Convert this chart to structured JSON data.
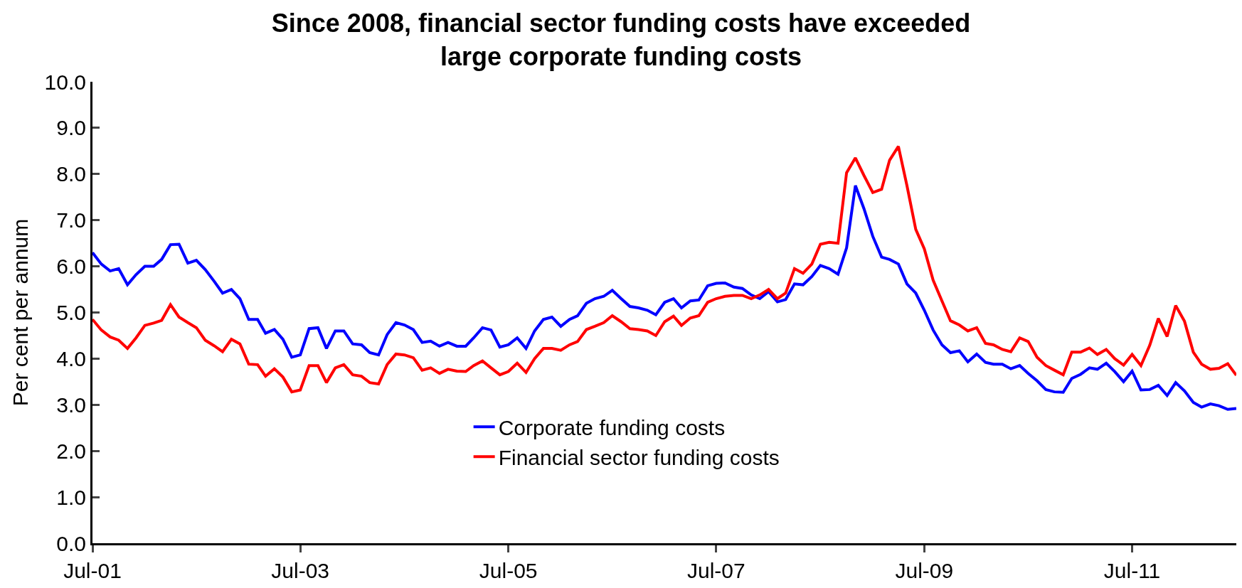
{
  "chart_data": {
    "type": "line",
    "title": "Since 2008, financial sector funding costs have exceeded\nlarge corporate funding costs",
    "ylabel": "Per cent per annum",
    "x": [
      "2001-07",
      "2001-08",
      "2001-09",
      "2001-10",
      "2001-11",
      "2001-12",
      "2002-01",
      "2002-02",
      "2002-03",
      "2002-04",
      "2002-05",
      "2002-06",
      "2002-07",
      "2002-08",
      "2002-09",
      "2002-10",
      "2002-11",
      "2002-12",
      "2003-01",
      "2003-02",
      "2003-03",
      "2003-04",
      "2003-05",
      "2003-06",
      "2003-07",
      "2003-08",
      "2003-09",
      "2003-10",
      "2003-11",
      "2003-12",
      "2004-01",
      "2004-02",
      "2004-03",
      "2004-04",
      "2004-05",
      "2004-06",
      "2004-07",
      "2004-08",
      "2004-09",
      "2004-10",
      "2004-11",
      "2004-12",
      "2005-01",
      "2005-02",
      "2005-03",
      "2005-04",
      "2005-05",
      "2005-06",
      "2005-07",
      "2005-08",
      "2005-09",
      "2005-10",
      "2005-11",
      "2005-12",
      "2006-01",
      "2006-02",
      "2006-03",
      "2006-04",
      "2006-05",
      "2006-06",
      "2006-07",
      "2006-08",
      "2006-09",
      "2006-10",
      "2006-11",
      "2006-12",
      "2007-01",
      "2007-02",
      "2007-03",
      "2007-04",
      "2007-05",
      "2007-06",
      "2007-07",
      "2007-08",
      "2007-09",
      "2007-10",
      "2007-11",
      "2007-12",
      "2008-01",
      "2008-02",
      "2008-03",
      "2008-04",
      "2008-05",
      "2008-06",
      "2008-07",
      "2008-08",
      "2008-09",
      "2008-10",
      "2008-11",
      "2008-12",
      "2009-01",
      "2009-02",
      "2009-03",
      "2009-04",
      "2009-05",
      "2009-06",
      "2009-07",
      "2009-08",
      "2009-09",
      "2009-10",
      "2009-11",
      "2009-12",
      "2010-01",
      "2010-02",
      "2010-03",
      "2010-04",
      "2010-05",
      "2010-06",
      "2010-07",
      "2010-08",
      "2010-09",
      "2010-10",
      "2010-11",
      "2010-12",
      "2011-01",
      "2011-02",
      "2011-03",
      "2011-04",
      "2011-05",
      "2011-06",
      "2011-07",
      "2011-08",
      "2011-09",
      "2011-10",
      "2011-11",
      "2011-12",
      "2012-01",
      "2012-02",
      "2012-03",
      "2012-04",
      "2012-05",
      "2012-06",
      "2012-07"
    ],
    "series": [
      {
        "name": "Corporate funding costs",
        "color": "#0000ff",
        "values": [
          6.3,
          6.05,
          5.9,
          5.95,
          5.6,
          5.82,
          6.0,
          6.0,
          6.15,
          6.47,
          6.48,
          6.07,
          6.13,
          5.93,
          5.68,
          5.42,
          5.5,
          5.3,
          4.85,
          4.85,
          4.55,
          4.63,
          4.42,
          4.03,
          4.08,
          4.65,
          4.67,
          4.22,
          4.6,
          4.6,
          4.32,
          4.3,
          4.13,
          4.08,
          4.52,
          4.78,
          4.73,
          4.63,
          4.35,
          4.38,
          4.27,
          4.35,
          4.27,
          4.27,
          4.45,
          4.67,
          4.62,
          4.25,
          4.3,
          4.45,
          4.22,
          4.6,
          4.85,
          4.9,
          4.7,
          4.85,
          4.93,
          5.2,
          5.3,
          5.35,
          5.48,
          5.3,
          5.13,
          5.1,
          5.05,
          4.95,
          5.22,
          5.3,
          5.1,
          5.25,
          5.27,
          5.58,
          5.63,
          5.64,
          5.55,
          5.52,
          5.38,
          5.3,
          5.45,
          5.23,
          5.28,
          5.62,
          5.6,
          5.78,
          6.02,
          5.95,
          5.83,
          6.4,
          7.75,
          7.25,
          6.65,
          6.2,
          6.15,
          6.05,
          5.62,
          5.42,
          5.05,
          4.62,
          4.3,
          4.13,
          4.17,
          3.93,
          4.1,
          3.92,
          3.88,
          3.88,
          3.78,
          3.85,
          3.68,
          3.52,
          3.33,
          3.28,
          3.27,
          3.57,
          3.66,
          3.8,
          3.77,
          3.9,
          3.72,
          3.5,
          3.73,
          3.32,
          3.33,
          3.42,
          3.2,
          3.48,
          3.3,
          3.05,
          2.95,
          3.02,
          2.98,
          2.9,
          2.92
        ]
      },
      {
        "name": "Financial sector funding costs",
        "color": "#ff0000",
        "values": [
          4.85,
          4.62,
          4.47,
          4.4,
          4.22,
          4.45,
          4.72,
          4.77,
          4.83,
          5.17,
          4.9,
          4.78,
          4.67,
          4.4,
          4.28,
          4.15,
          4.42,
          4.32,
          3.88,
          3.87,
          3.62,
          3.78,
          3.6,
          3.28,
          3.32,
          3.85,
          3.85,
          3.48,
          3.8,
          3.87,
          3.65,
          3.62,
          3.48,
          3.45,
          3.87,
          4.1,
          4.08,
          4.02,
          3.75,
          3.8,
          3.68,
          3.77,
          3.73,
          3.72,
          3.85,
          3.95,
          3.8,
          3.65,
          3.72,
          3.9,
          3.7,
          4.0,
          4.22,
          4.22,
          4.18,
          4.3,
          4.37,
          4.63,
          4.7,
          4.78,
          4.93,
          4.8,
          4.65,
          4.63,
          4.6,
          4.5,
          4.8,
          4.92,
          4.72,
          4.88,
          4.93,
          5.22,
          5.3,
          5.35,
          5.37,
          5.37,
          5.3,
          5.38,
          5.5,
          5.3,
          5.42,
          5.95,
          5.85,
          6.05,
          6.48,
          6.52,
          6.5,
          8.03,
          8.35,
          7.97,
          7.6,
          7.67,
          8.3,
          8.6,
          7.75,
          6.8,
          6.38,
          5.7,
          5.25,
          4.82,
          4.73,
          4.6,
          4.67,
          4.33,
          4.3,
          4.2,
          4.15,
          4.45,
          4.37,
          4.03,
          3.85,
          3.75,
          3.65,
          4.14,
          4.14,
          4.23,
          4.09,
          4.2,
          4.0,
          3.86,
          4.09,
          3.85,
          4.29,
          4.87,
          4.48,
          5.15,
          4.81,
          4.14,
          3.88,
          3.77,
          3.79,
          3.89,
          3.64
        ]
      }
    ],
    "xlim": [
      "2001-07",
      "2012-07"
    ],
    "xticks": [
      {
        "value": "2001-07",
        "label": "Jul-01"
      },
      {
        "value": "2003-07",
        "label": "Jul-03"
      },
      {
        "value": "2005-07",
        "label": "Jul-05"
      },
      {
        "value": "2007-07",
        "label": "Jul-07"
      },
      {
        "value": "2009-07",
        "label": "Jul-09"
      },
      {
        "value": "2011-07",
        "label": "Jul-11"
      }
    ],
    "ylim": [
      0,
      10
    ],
    "yticks": [
      {
        "value": 0,
        "label": "0.0"
      },
      {
        "value": 1,
        "label": "1.0"
      },
      {
        "value": 2,
        "label": "2.0"
      },
      {
        "value": 3,
        "label": "3.0"
      },
      {
        "value": 4,
        "label": "4.0"
      },
      {
        "value": 5,
        "label": "5.0"
      },
      {
        "value": 6,
        "label": "6.0"
      },
      {
        "value": 7,
        "label": "7.0"
      },
      {
        "value": 8,
        "label": "8.0"
      },
      {
        "value": 9,
        "label": "9.0"
      },
      {
        "value": 10,
        "label": "10.0"
      }
    ],
    "grid": false,
    "legend": "bottom center",
    "marker": "none",
    "line_style": "solid"
  }
}
